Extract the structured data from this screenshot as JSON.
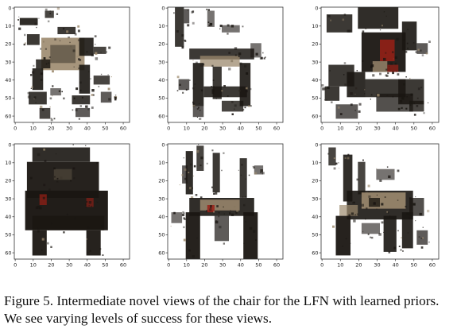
{
  "figure": {
    "caption": "Figure 5. Intermediate novel views of the chair for the LFN with learned priors. We see varying levels of success for these views.",
    "axis_ticks": {
      "x": [
        "0",
        "10",
        "20",
        "30",
        "40",
        "50",
        "60"
      ],
      "y": [
        "0",
        "10",
        "20",
        "30",
        "40",
        "50",
        "60"
      ]
    },
    "panels": [
      {
        "id": "top-left",
        "description_icon": "chair-render-view-1"
      },
      {
        "id": "top-middle",
        "description_icon": "chair-render-view-2"
      },
      {
        "id": "top-right",
        "description_icon": "chair-render-view-3"
      },
      {
        "id": "bottom-left",
        "description_icon": "chair-render-view-4"
      },
      {
        "id": "bottom-middle",
        "description_icon": "chair-render-view-5"
      },
      {
        "id": "bottom-right",
        "description_icon": "chair-render-view-6"
      }
    ],
    "colors": {
      "dark": "#1a1612",
      "tan": "#9c8a6e",
      "red": "#9a2016"
    }
  }
}
